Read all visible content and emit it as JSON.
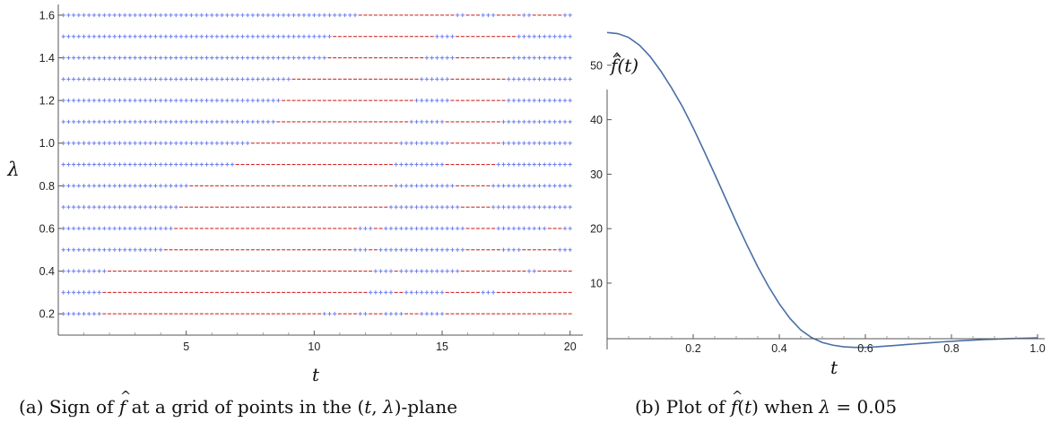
{
  "chart_data": [
    {
      "type": "scatter",
      "xlabel": "t",
      "ylabel": "λ",
      "xlim": [
        0,
        20.5
      ],
      "ylim": [
        0.1,
        1.65
      ],
      "x_ticks": [
        "5",
        "10",
        "15",
        "20"
      ],
      "y_ticks": [
        "0.2",
        "0.4",
        "0.6",
        "0.8",
        "1.0",
        "1.2",
        "1.4",
        "1.6"
      ],
      "grid": false,
      "marker_legend": {
        "positive": {
          "marker": "plus",
          "color": "#6f7ff0"
        },
        "negative": {
          "marker": "dash",
          "color": "#d02828"
        }
      },
      "t_step": 0.2,
      "t_range": [
        0.2,
        20.0
      ],
      "rows": [
        {
          "lambda": 0.2,
          "positive_t": [
            [
              0.2,
              1.6
            ],
            [
              10.4,
              10.8
            ],
            [
              11.8,
              12.0
            ],
            [
              12.8,
              13.4
            ],
            [
              14.2,
              15.0
            ]
          ]
        },
        {
          "lambda": 0.3,
          "positive_t": [
            [
              0.2,
              1.6
            ],
            [
              12.2,
              13.0
            ],
            [
              13.6,
              15.0
            ],
            [
              16.6,
              17.0
            ]
          ]
        },
        {
          "lambda": 0.4,
          "positive_t": [
            [
              0.2,
              1.8
            ],
            [
              12.4,
              13.0
            ],
            [
              13.4,
              15.6
            ],
            [
              18.4,
              18.6
            ]
          ]
        },
        {
          "lambda": 0.5,
          "positive_t": [
            [
              0.2,
              4.0
            ],
            [
              11.6,
              12.0
            ],
            [
              12.6,
              15.8
            ],
            [
              17.4,
              18.0
            ],
            [
              19.6,
              20.0
            ]
          ]
        },
        {
          "lambda": 0.6,
          "positive_t": [
            [
              0.2,
              4.4
            ],
            [
              11.8,
              12.2
            ],
            [
              12.8,
              15.8
            ],
            [
              17.2,
              19.0
            ],
            [
              19.8,
              20.0
            ]
          ]
        },
        {
          "lambda": 0.7,
          "positive_t": [
            [
              0.2,
              4.6
            ],
            [
              13.0,
              15.6
            ],
            [
              17.0,
              20.0
            ]
          ]
        },
        {
          "lambda": 0.8,
          "positive_t": [
            [
              0.2,
              5.0
            ],
            [
              13.2,
              15.4
            ],
            [
              17.0,
              20.0
            ]
          ]
        },
        {
          "lambda": 0.9,
          "positive_t": [
            [
              0.2,
              6.8
            ],
            [
              13.2,
              15.0
            ],
            [
              17.2,
              20.0
            ]
          ]
        },
        {
          "lambda": 1.0,
          "positive_t": [
            [
              0.2,
              7.4
            ],
            [
              13.4,
              15.2
            ],
            [
              17.4,
              20.0
            ]
          ]
        },
        {
          "lambda": 1.1,
          "positive_t": [
            [
              0.2,
              8.4
            ],
            [
              13.8,
              15.0
            ],
            [
              17.4,
              20.0
            ]
          ]
        },
        {
          "lambda": 1.2,
          "positive_t": [
            [
              0.2,
              8.6
            ],
            [
              14.0,
              15.2
            ],
            [
              17.6,
              20.0
            ]
          ]
        },
        {
          "lambda": 1.3,
          "positive_t": [
            [
              0.2,
              9.0
            ],
            [
              14.2,
              15.2
            ],
            [
              17.6,
              20.0
            ]
          ]
        },
        {
          "lambda": 1.4,
          "positive_t": [
            [
              0.2,
              10.4
            ],
            [
              14.4,
              15.4
            ],
            [
              17.8,
              20.0
            ]
          ]
        },
        {
          "lambda": 1.5,
          "positive_t": [
            [
              0.2,
              10.6
            ],
            [
              14.8,
              15.4
            ],
            [
              18.0,
              20.0
            ]
          ]
        },
        {
          "lambda": 1.6,
          "positive_t": [
            [
              0.2,
              11.6
            ],
            [
              15.6,
              15.8
            ],
            [
              16.6,
              17.0
            ],
            [
              18.2,
              18.4
            ],
            [
              19.8,
              20.0
            ]
          ]
        }
      ]
    },
    {
      "type": "line",
      "xlabel": "t",
      "ylabel": "f̂(t)",
      "xlim": [
        0,
        1.0
      ],
      "ylim": [
        -3,
        60
      ],
      "x_ticks": [
        "0.2",
        "0.4",
        "0.6",
        "0.8",
        "1.0"
      ],
      "y_ticks": [
        "10",
        "20",
        "30",
        "40",
        "50"
      ],
      "grid": false,
      "series": [
        {
          "color": "#4a6fa5",
          "x": [
            0,
            0.025,
            0.05,
            0.075,
            0.1,
            0.125,
            0.15,
            0.175,
            0.2,
            0.225,
            0.25,
            0.275,
            0.3,
            0.325,
            0.35,
            0.375,
            0.4,
            0.425,
            0.45,
            0.475,
            0.5,
            0.525,
            0.55,
            0.575,
            0.6,
            0.625,
            0.65,
            0.675,
            0.7,
            0.725,
            0.75,
            0.775,
            0.8,
            0.825,
            0.85,
            0.875,
            0.9,
            0.925,
            0.95,
            0.975,
            1.0
          ],
          "y": [
            56,
            55.8,
            55.1,
            53.7,
            51.6,
            48.9,
            45.8,
            42.4,
            38.5,
            34.3,
            30.0,
            25.6,
            21.2,
            17.0,
            13.0,
            9.4,
            6.2,
            3.5,
            1.4,
            0.0,
            -0.9,
            -1.4,
            -1.7,
            -1.8,
            -1.8,
            -1.7,
            -1.55,
            -1.4,
            -1.25,
            -1.1,
            -0.95,
            -0.8,
            -0.68,
            -0.56,
            -0.46,
            -0.37,
            -0.29,
            -0.22,
            -0.16,
            -0.1,
            -0.05
          ]
        }
      ]
    }
  ],
  "captions": {
    "a_prefix": "(a) Sign of",
    "a_f": "f",
    "a_mid": " at a grid of points in the (",
    "a_t": "t",
    "a_comma": ", ",
    "a_lambda": "λ",
    "a_suffix": ")-plane",
    "b_prefix": "(b) Plot of",
    "b_f": "f",
    "b_t_open": "(",
    "b_t": "t",
    "b_t_close": ")",
    "b_mid": " when ",
    "b_lambda": "λ",
    "b_value": " = 0.05"
  }
}
